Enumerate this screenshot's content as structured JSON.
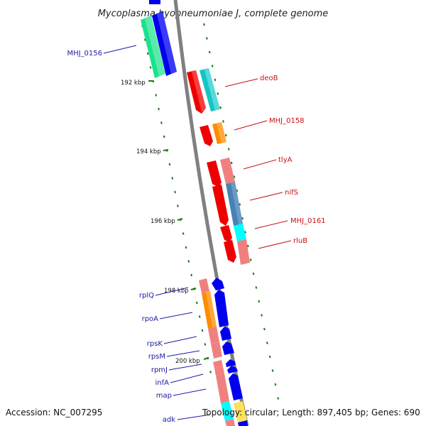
{
  "title": "Mycoplasma hyopneumoniae J, complete genome",
  "footer": {
    "accession": "Accession: NC_007295",
    "topology": "Topology: circular; Length: 897,405 bp; Genes: 690"
  },
  "colors": {
    "backbone": "#808080",
    "tick": "#1a7a1a",
    "blue_label": "#1a1aa6",
    "red_label": "#c81010"
  },
  "ticks": [
    {
      "label": "192 kbp"
    },
    {
      "label": "194 kbp"
    },
    {
      "label": "196 kbp"
    },
    {
      "label": "198 kbp"
    },
    {
      "label": "200 kbp"
    }
  ],
  "genes": [
    {
      "name": "MHJ_0156",
      "label": "MHJ_0156",
      "strand": "minus",
      "color": "#19e38c"
    },
    {
      "name": "deoB",
      "label": "deoB",
      "strand": "plus",
      "color": "#17c4c4"
    },
    {
      "name": "MHJ_0158",
      "label": "MHJ_0158",
      "strand": "plus",
      "color": "#ff8c00"
    },
    {
      "name": "tlyA",
      "label": "tlyA",
      "strand": "plus",
      "color": "#f08080"
    },
    {
      "name": "nifS",
      "label": "nifS",
      "strand": "plus",
      "color": "#4682b4"
    },
    {
      "name": "MHJ_0161",
      "label": "MHJ_0161",
      "strand": "plus",
      "color": "#00ffff"
    },
    {
      "name": "rluB",
      "label": "rluB",
      "strand": "plus",
      "color": "#f08080"
    },
    {
      "name": "rplQ",
      "label": "rplQ",
      "strand": "minus",
      "color": "#f08080"
    },
    {
      "name": "rpoA",
      "label": "rpoA",
      "strand": "minus",
      "color": "#ff8c00"
    },
    {
      "name": "rpsK",
      "label": "rpsK",
      "strand": "minus",
      "color": "#f08080"
    },
    {
      "name": "rpsM",
      "label": "rpsM",
      "strand": "minus",
      "color": "#f08080"
    },
    {
      "name": "rpmJ",
      "label": "rpmJ",
      "strand": "minus",
      "color": "#f08080"
    },
    {
      "name": "infA",
      "label": "infA",
      "strand": "minus",
      "color": "#f08080"
    },
    {
      "name": "map",
      "label": "map",
      "strand": "minus",
      "color": "#f08080"
    },
    {
      "name": "adk",
      "label": "adk",
      "strand": "minus",
      "color": "#00ffff"
    }
  ]
}
